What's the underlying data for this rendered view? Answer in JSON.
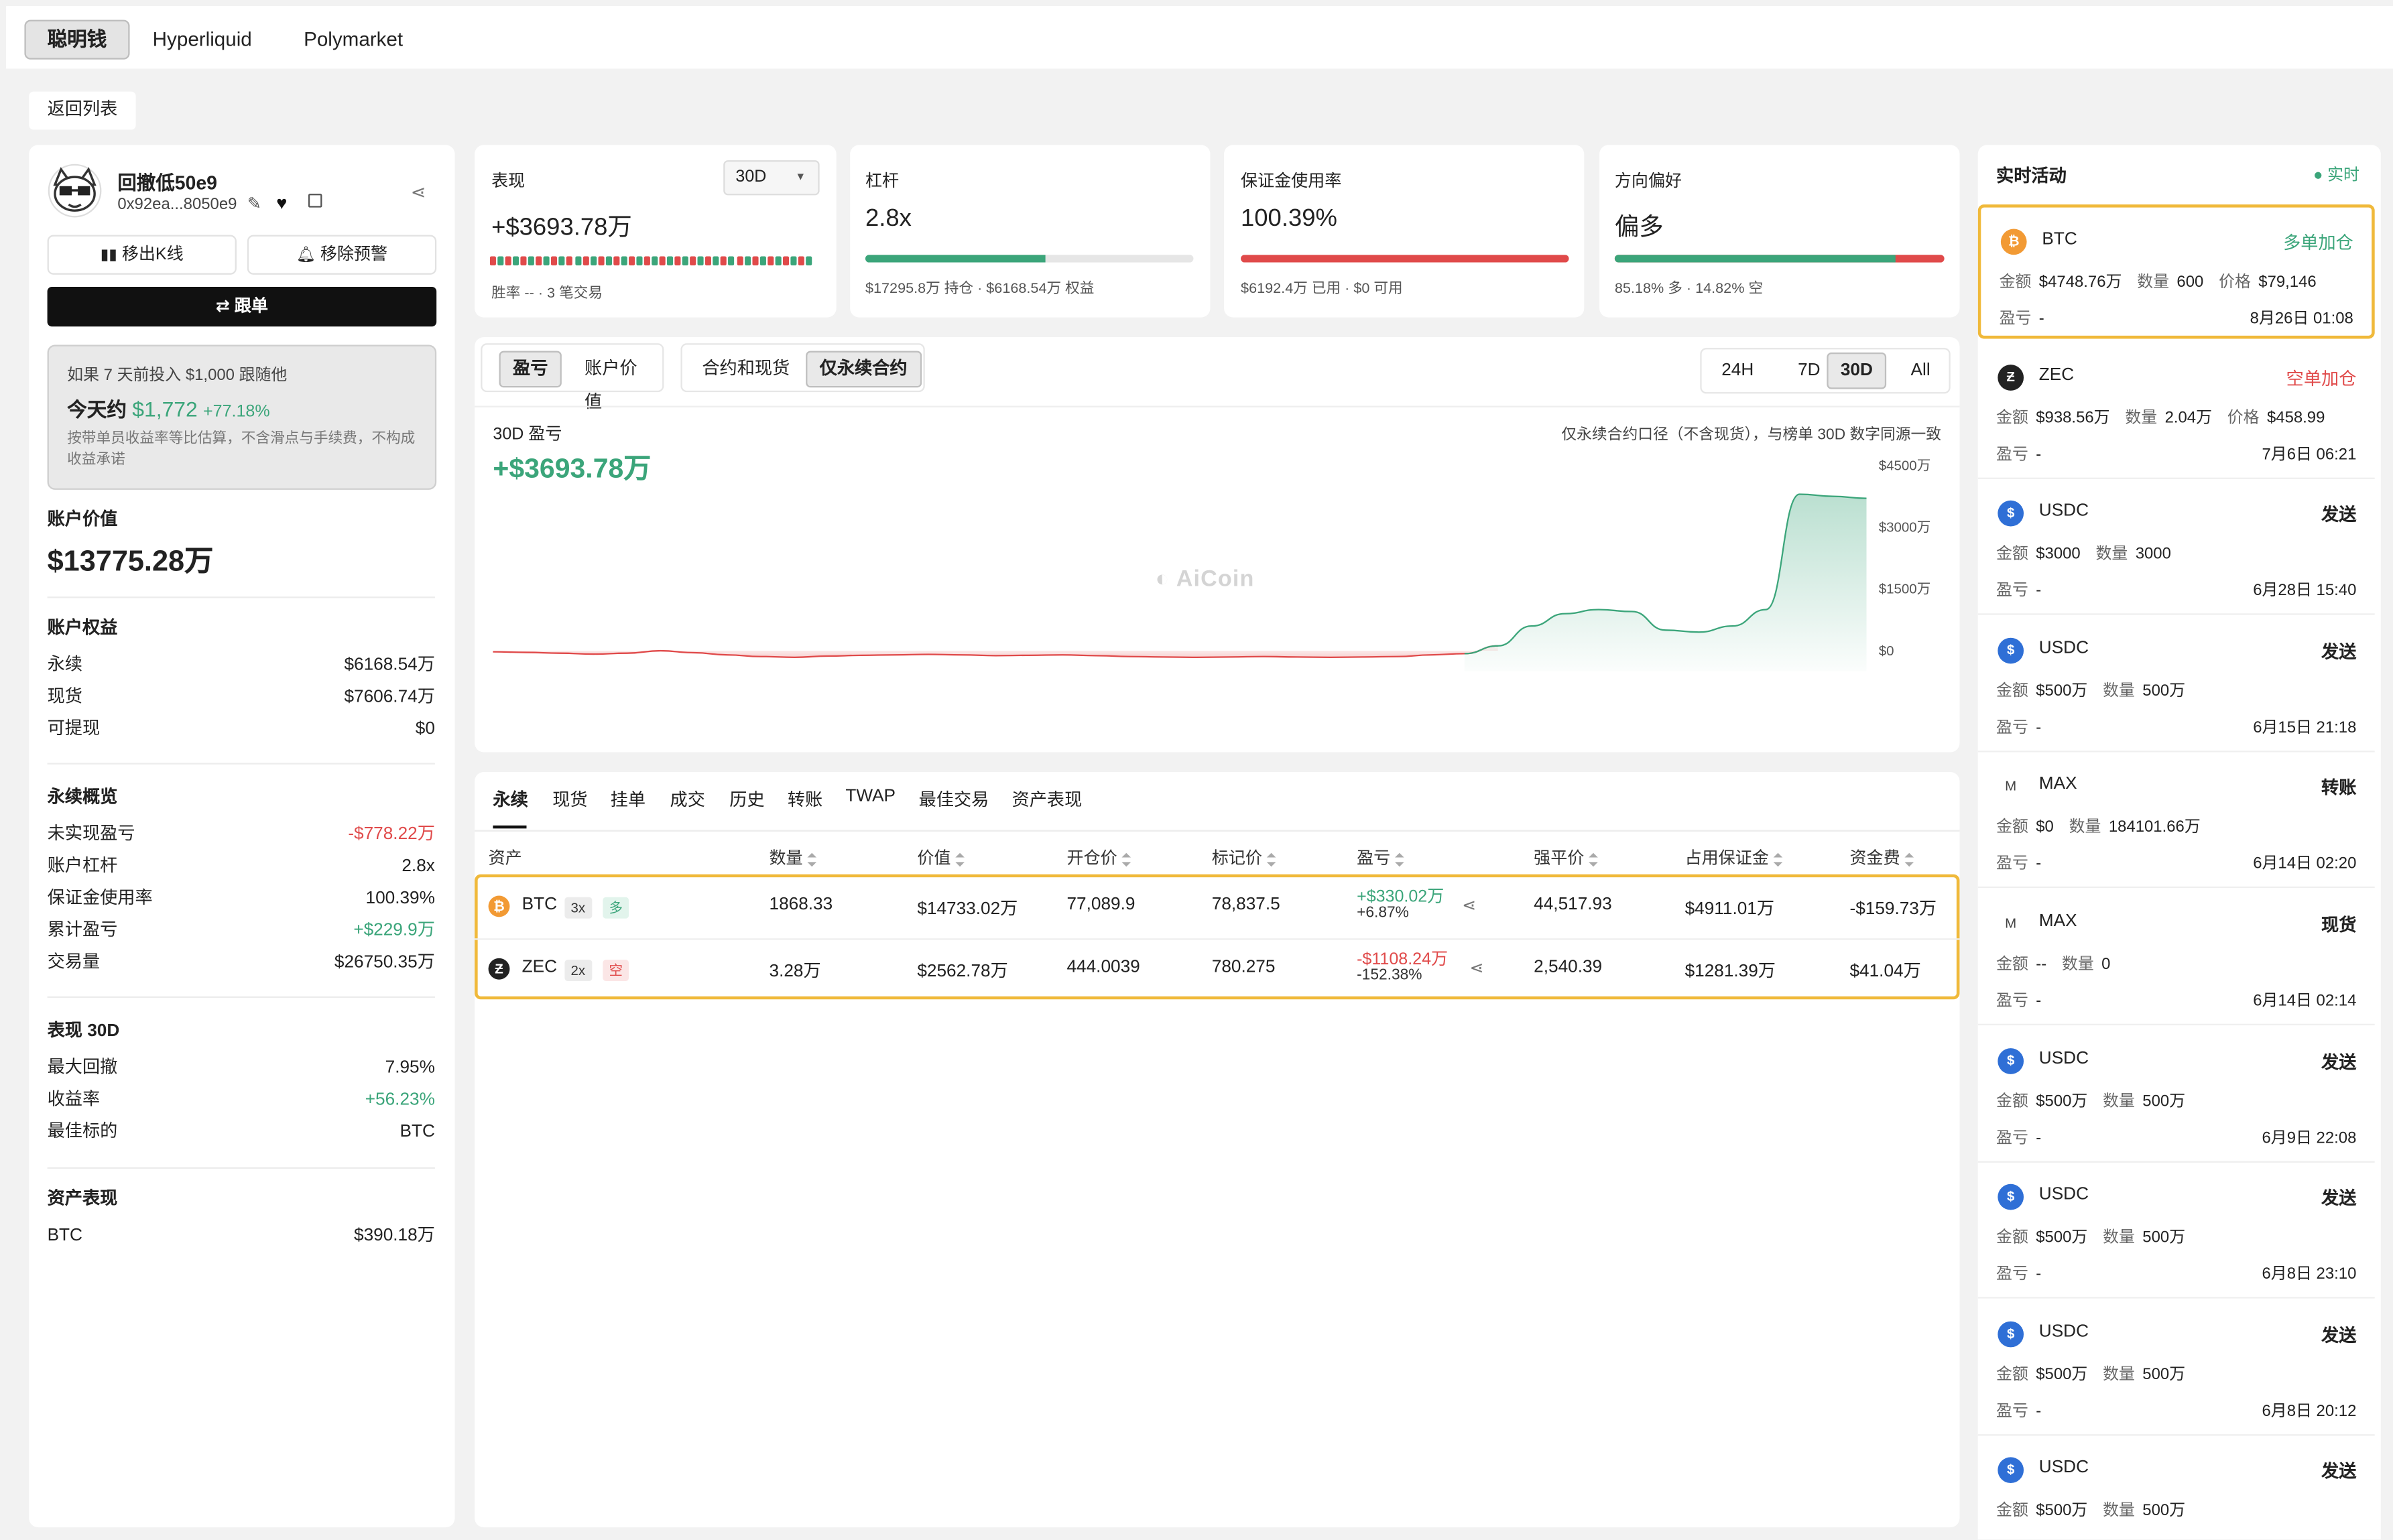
{
  "top_tabs": [
    "聪明钱",
    "Hyperliquid",
    "Polymarket"
  ],
  "back_label": "返回列表",
  "profile": {
    "name": "回撤低50e9",
    "address": "0x92ea...8050e9",
    "kline_btn": "移出K线",
    "alert_btn": "移除预警",
    "follow_btn": "跟单",
    "sim_line1": "如果 7 天前投入 $1,000 跟随他",
    "sim_prefix": "今天约",
    "sim_value": "$1,772",
    "sim_pct": "+77.18%",
    "sim_note": "按带单员收益率等比估算，不含滑点与手续费，不构成收益承诺"
  },
  "account_value": {
    "label": "账户价值",
    "value": "$13775.28万"
  },
  "equity": {
    "title": "账户权益",
    "rows": [
      {
        "label": "永续",
        "value": "$6168.54万"
      },
      {
        "label": "现货",
        "value": "$7606.74万"
      },
      {
        "label": "可提现",
        "value": "$0"
      }
    ]
  },
  "perp_overview": {
    "title": "永续概览",
    "rows": [
      {
        "label": "未实现盈亏",
        "value": "-$778.22万"
      },
      {
        "label": "账户杠杆",
        "value": "2.8x"
      },
      {
        "label": "保证金使用率",
        "value": "100.39%"
      },
      {
        "label": "累计盈亏",
        "value": "+$229.9万"
      },
      {
        "label": "交易量",
        "value": "$26750.35万"
      }
    ]
  },
  "perf30": {
    "title": "表现 30D",
    "rows": [
      {
        "label": "最大回撤",
        "value": "7.95%"
      },
      {
        "label": "收益率",
        "value": "+56.23%"
      },
      {
        "label": "最佳标的",
        "value": "BTC"
      }
    ]
  },
  "asset_perf": {
    "title": "资产表现",
    "rows": [
      {
        "label": "BTC",
        "value": "$390.18万"
      }
    ]
  },
  "stats": {
    "perf": {
      "title": "表现",
      "period": "30D",
      "value": "+$3693.78万",
      "note": "胜率 -- · 3 笔交易"
    },
    "leverage": {
      "title": "杠杆",
      "value": "2.8x",
      "note": "$17295.8万 持仓 · $6168.54万 权益",
      "fill": 0.55
    },
    "margin": {
      "title": "保证金使用率",
      "value": "100.39%",
      "note": "$6192.4万 已用 · $0 可用",
      "fill": 1.0
    },
    "bias": {
      "title": "方向偏好",
      "value": "偏多",
      "note": "85.18% 多 · 14.82% 空",
      "long": 85.18
    }
  },
  "chart_tabs": {
    "group1": [
      "盈亏",
      "账户价值"
    ],
    "group2": [
      "合约和现货",
      "仅永续合约"
    ],
    "periods": [
      "24H",
      "7D",
      "30D",
      "All"
    ]
  },
  "chart_data": {
    "type": "area",
    "title": "30D 盈亏",
    "subtitle": "+$3693.78万",
    "note": "仅永续合约口径（不含现货），与榜单 30D 数字同源一致",
    "watermark": "AiCoin",
    "y_ticks": [
      "$4500万",
      "$3000万",
      "$1500万",
      "$0"
    ],
    "ylim": [
      -500,
      4500
    ],
    "values": [
      -25,
      -40,
      -60,
      -80,
      -60,
      0,
      -50,
      -100,
      -140,
      -160,
      -130,
      -110,
      -100,
      -90,
      -100,
      -120,
      -110,
      -100,
      -120,
      -140,
      -150,
      -160,
      -150,
      -140,
      -150,
      -160,
      -150,
      -140,
      -100,
      -70,
      120,
      600,
      900,
      1000,
      950,
      500,
      450,
      600,
      1000,
      3800,
      3750,
      3700
    ]
  },
  "positions": {
    "tabs": [
      "永续",
      "现货",
      "挂单",
      "成交",
      "历史",
      "转账",
      "TWAP",
      "最佳交易",
      "资产表现"
    ],
    "headers": [
      "资产",
      "数量",
      "价值",
      "开仓价",
      "标记价",
      "盈亏",
      "强平价",
      "占用保证金",
      "资金费"
    ],
    "rows": [
      {
        "coin": "BTC",
        "lev": "3x",
        "side": "多",
        "qty": "1868.33",
        "value": "$14733.02万",
        "entry": "77,089.9",
        "mark": "78,837.5",
        "pnl": "+$330.02万",
        "pnl_pct": "+6.87%",
        "liq": "44,517.93",
        "margin": "$4911.01万",
        "funding": "-$159.73万"
      },
      {
        "coin": "ZEC",
        "lev": "2x",
        "side": "空",
        "qty": "3.28万",
        "value": "$2562.78万",
        "entry": "444.0039",
        "mark": "780.275",
        "pnl": "-$1108.24万",
        "pnl_pct": "-152.38%",
        "liq": "2,540.39",
        "margin": "$1281.39万",
        "funding": "$41.04万"
      }
    ]
  },
  "activity": {
    "title": "实时活动",
    "live": "实时",
    "k_amount": "金额",
    "k_qty": "数量",
    "k_price": "价格",
    "k_pnl": "盈亏",
    "items": [
      {
        "coin": "BTC",
        "type": "多单加仓",
        "amount": "$4748.76万",
        "qty": "600",
        "price": "$79,146",
        "pnl": "-",
        "time": "8月26日 01:08"
      },
      {
        "coin": "ZEC",
        "type": "空单加仓",
        "amount": "$938.56万",
        "qty": "2.04万",
        "price": "$458.99",
        "pnl": "-",
        "time": "7月6日 06:21"
      },
      {
        "coin": "USDC",
        "type": "发送",
        "amount": "$3000",
        "qty": "3000",
        "pnl": "-",
        "time": "6月28日 15:40"
      },
      {
        "coin": "USDC",
        "type": "发送",
        "amount": "$500万",
        "qty": "500万",
        "pnl": "-",
        "time": "6月15日 21:18"
      },
      {
        "coin": "MAX",
        "type": "转账",
        "amount": "$0",
        "qty": "184101.66万",
        "pnl": "-",
        "time": "6月14日 02:20"
      },
      {
        "coin": "MAX",
        "type": "现货",
        "amount": "--",
        "qty": "0",
        "pnl": "-",
        "time": "6月14日 02:14"
      },
      {
        "coin": "USDC",
        "type": "发送",
        "amount": "$500万",
        "qty": "500万",
        "pnl": "-",
        "time": "6月9日 22:08"
      },
      {
        "coin": "USDC",
        "type": "发送",
        "amount": "$500万",
        "qty": "500万",
        "pnl": "-",
        "time": "6月8日 23:10"
      },
      {
        "coin": "USDC",
        "type": "发送",
        "amount": "$500万",
        "qty": "500万",
        "pnl": "-",
        "time": "6月8日 20:12"
      },
      {
        "coin": "USDC",
        "type": "发送",
        "amount": "$500万",
        "qty": "500万"
      }
    ]
  },
  "colors": {
    "green": "#3ba57a",
    "red": "#e04a4a",
    "btc": "#f29a34",
    "zec": "#222222",
    "usdc": "#2f6fd6",
    "highlight": "#f0b93a"
  }
}
